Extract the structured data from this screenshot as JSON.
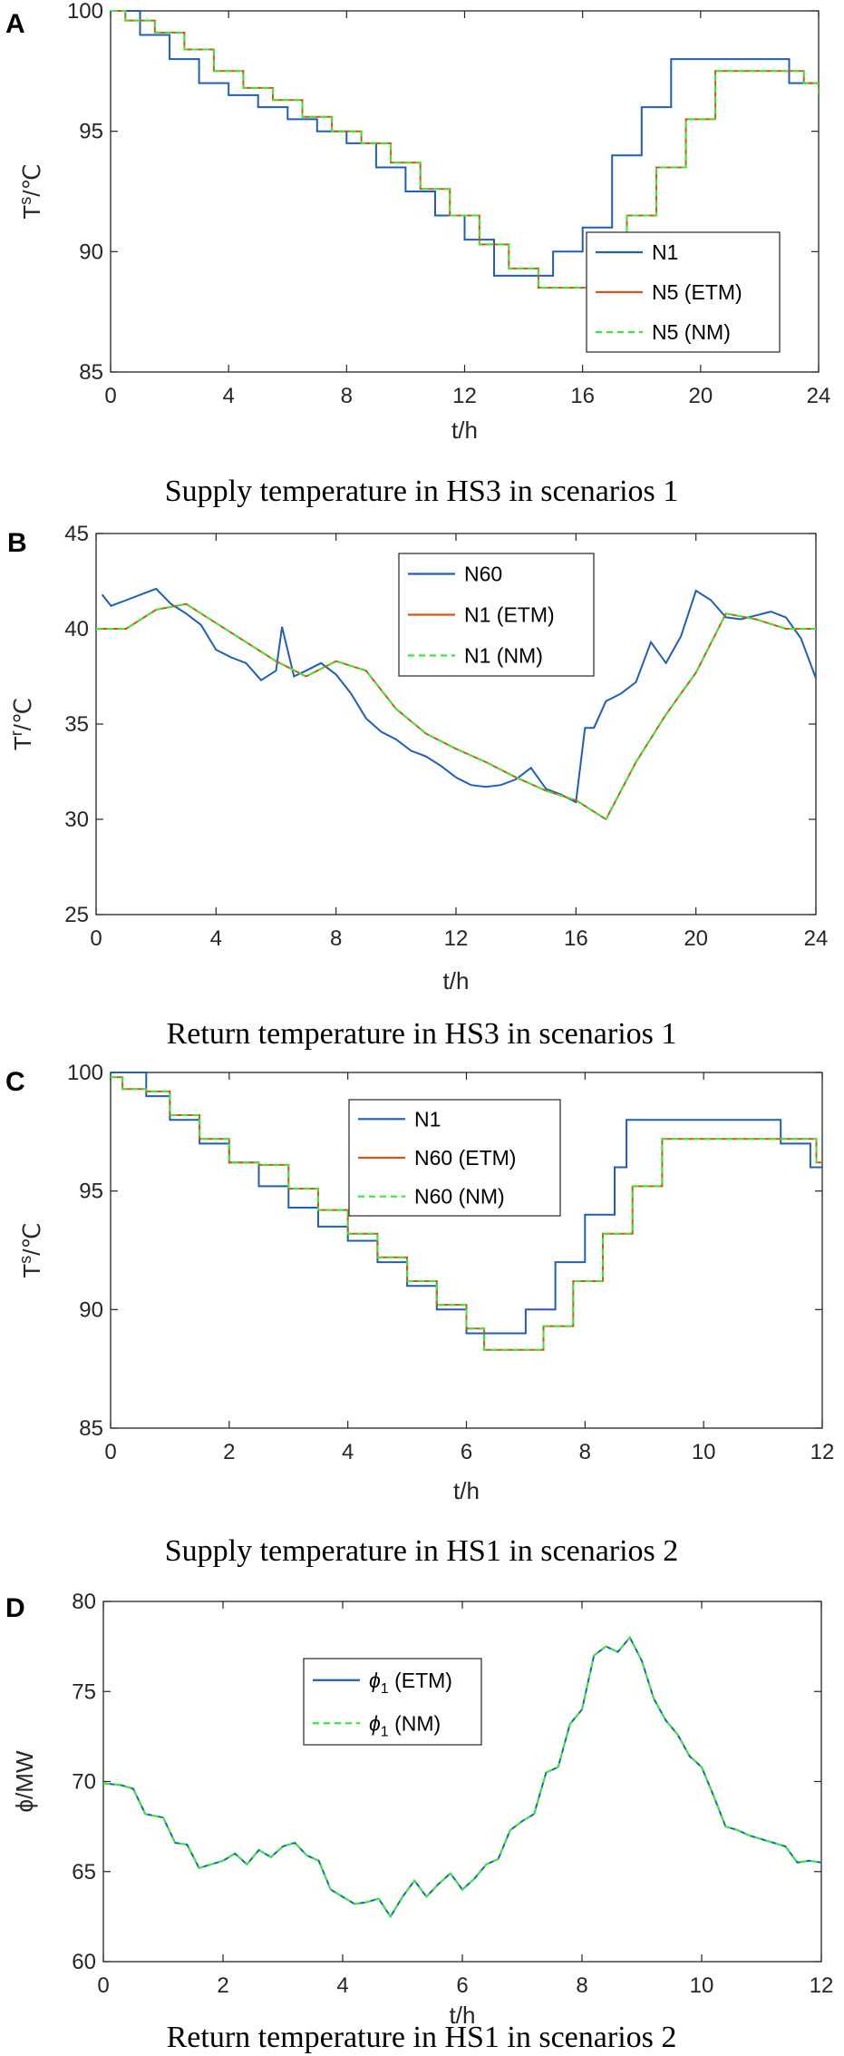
{
  "panels": [
    {
      "letter": "A",
      "caption": "Supply temperature in HS3 in scenarios 1",
      "chart_data": {
        "type": "line",
        "xlabel": "t/h",
        "ylabel": "Ts/℃",
        "ylabel_main": "T",
        "ylabel_sup": "s",
        "ylabel_unit": "/℃",
        "xlim": [
          0,
          24
        ],
        "ylim": [
          85,
          100
        ],
        "xticks": [
          0,
          4,
          8,
          12,
          16,
          20,
          24
        ],
        "yticks": [
          85,
          90,
          95,
          100
        ],
        "legend_position": "lower-right",
        "series": [
          {
            "name": "N1",
            "color": "#1f5fb4",
            "dash": "solid",
            "step": true,
            "x": [
              0,
              1,
              2,
              3,
              4,
              5,
              6,
              7,
              8,
              9,
              10,
              11,
              12,
              13,
              14,
              15,
              16,
              17,
              18,
              19,
              20,
              21,
              22,
              23,
              24
            ],
            "y": [
              100,
              99,
              98,
              97,
              96.5,
              96,
              95.5,
              95,
              94.5,
              93.5,
              92.5,
              91.5,
              90.5,
              89,
              89,
              90,
              91,
              94,
              96,
              98,
              98,
              98,
              98,
              97,
              96.5
            ]
          },
          {
            "name": "N5 (ETM)",
            "color": "#d95319",
            "dash": "solid",
            "step": true,
            "x": [
              0,
              0.5,
              1.5,
              2.5,
              3.5,
              4.5,
              5.5,
              6.5,
              7.5,
              8.5,
              9.5,
              10.5,
              11.5,
              12.5,
              13.5,
              14.5,
              15.5,
              16.5,
              17.5,
              18.5,
              19.5,
              20.5,
              21.5,
              22.5,
              23.5,
              24
            ],
            "y": [
              100,
              99.6,
              99.1,
              98.4,
              97.5,
              96.8,
              96.3,
              95.6,
              95,
              94.5,
              93.7,
              92.6,
              91.5,
              90.3,
              89.3,
              88.5,
              88.5,
              89.5,
              91.5,
              93.5,
              95.5,
              97.5,
              97.5,
              97.5,
              97,
              96.5
            ]
          },
          {
            "name": "N5 (NM)",
            "color": "#33ee33",
            "dash": "dashed",
            "step": true,
            "x": [
              0,
              0.5,
              1.5,
              2.5,
              3.5,
              4.5,
              5.5,
              6.5,
              7.5,
              8.5,
              9.5,
              10.5,
              11.5,
              12.5,
              13.5,
              14.5,
              15.5,
              16.5,
              17.5,
              18.5,
              19.5,
              20.5,
              21.5,
              22.5,
              23.5,
              24
            ],
            "y": [
              100,
              99.6,
              99.1,
              98.4,
              97.5,
              96.8,
              96.3,
              95.6,
              95,
              94.5,
              93.7,
              92.6,
              91.5,
              90.3,
              89.3,
              88.5,
              88.5,
              89.5,
              91.5,
              93.5,
              95.5,
              97.5,
              97.5,
              97.5,
              97,
              96.5
            ]
          }
        ]
      }
    },
    {
      "letter": "B",
      "caption": "Return temperature in HS3 in scenarios 1",
      "chart_data": {
        "type": "line",
        "xlabel": "t/h",
        "ylabel": "Tr/℃",
        "ylabel_main": "T",
        "ylabel_sup": "r",
        "ylabel_unit": "/℃",
        "xlim": [
          0,
          24
        ],
        "ylim": [
          25,
          45
        ],
        "xticks": [
          0,
          4,
          8,
          12,
          16,
          20,
          24
        ],
        "yticks": [
          25,
          30,
          35,
          40,
          45
        ],
        "legend_position": "top-center",
        "series": [
          {
            "name": "N60",
            "color": "#1f5fb4",
            "dash": "solid",
            "step": false,
            "x": [
              0.2,
              0.5,
              1,
              1.5,
              2,
              2.5,
              3,
              3.5,
              4,
              4.5,
              5,
              5.5,
              6,
              6.2,
              6.6,
              7,
              7.5,
              8,
              8.5,
              9,
              9.5,
              10,
              10.5,
              11,
              11.5,
              12,
              12.5,
              13,
              13.5,
              14,
              14.5,
              15,
              15.5,
              16,
              16.3,
              16.6,
              17,
              17.5,
              18,
              18.5,
              19,
              19.5,
              20,
              20.5,
              21,
              21.5,
              22,
              22.5,
              23,
              23.5,
              24
            ],
            "y": [
              41.8,
              41.2,
              41.5,
              41.8,
              42.1,
              41.3,
              40.8,
              40.2,
              38.9,
              38.5,
              38.2,
              37.3,
              37.8,
              40.1,
              37.5,
              37.8,
              38.2,
              37.6,
              36.6,
              35.3,
              34.6,
              34.2,
              33.6,
              33.3,
              32.8,
              32.2,
              31.8,
              31.7,
              31.8,
              32.1,
              32.7,
              31.6,
              31.3,
              30.9,
              34.8,
              34.8,
              36.2,
              36.6,
              37.2,
              39.3,
              38.2,
              39.6,
              42,
              41.5,
              40.6,
              40.5,
              40.7,
              40.9,
              40.6,
              39.5,
              37.4
            ]
          },
          {
            "name": "N1 (ETM)",
            "color": "#d95319",
            "dash": "solid",
            "step": false,
            "x": [
              0,
              1,
              2,
              3,
              4,
              5,
              6,
              7,
              8,
              9,
              10,
              11,
              12,
              13,
              14,
              15,
              16,
              17,
              18,
              19,
              20,
              21,
              22,
              23,
              24
            ],
            "y": [
              40,
              40,
              41,
              41.3,
              40.3,
              39.3,
              38.3,
              37.5,
              38.3,
              37.8,
              35.8,
              34.5,
              33.7,
              33,
              32.2,
              31.5,
              31,
              30,
              33,
              35.5,
              37.7,
              40.8,
              40.5,
              40,
              40
            ]
          },
          {
            "name": "N1 (NM)",
            "color": "#33ee33",
            "dash": "dashed",
            "step": false,
            "x": [
              0,
              1,
              2,
              3,
              4,
              5,
              6,
              7,
              8,
              9,
              10,
              11,
              12,
              13,
              14,
              15,
              16,
              17,
              18,
              19,
              20,
              21,
              22,
              23,
              24
            ],
            "y": [
              40,
              40,
              41,
              41.3,
              40.3,
              39.3,
              38.3,
              37.5,
              38.3,
              37.8,
              35.8,
              34.5,
              33.7,
              33,
              32.2,
              31.5,
              31,
              30,
              33,
              35.5,
              37.7,
              40.8,
              40.5,
              40,
              40
            ]
          }
        ]
      }
    },
    {
      "letter": "C",
      "caption": "Supply temperature in HS1 in scenarios 2",
      "chart_data": {
        "type": "line",
        "xlabel": "t/h",
        "ylabel": "Ts/℃",
        "ylabel_main": "T",
        "ylabel_sup": "s",
        "ylabel_unit": "/℃",
        "xlim": [
          0,
          12
        ],
        "ylim": [
          85,
          100
        ],
        "xticks": [
          0,
          2,
          4,
          6,
          8,
          10,
          12
        ],
        "yticks": [
          85,
          90,
          95,
          100
        ],
        "legend_position": "top-center",
        "series": [
          {
            "name": "N1",
            "color": "#1f5fb4",
            "dash": "solid",
            "step": true,
            "x": [
              0,
              0.6,
              1,
              1.5,
              2,
              2.5,
              3,
              3.5,
              4,
              4.5,
              5,
              5.5,
              6,
              6.5,
              7,
              7.5,
              8,
              8.5,
              8.7,
              10,
              11.3,
              11.8,
              12
            ],
            "y": [
              100,
              99,
              98,
              97,
              96.2,
              95.2,
              94.3,
              93.5,
              92.9,
              92,
              91,
              90,
              89,
              89,
              90,
              92,
              94,
              96,
              98,
              98,
              97,
              96,
              96
            ]
          },
          {
            "name": "N60 (ETM)",
            "color": "#d95319",
            "dash": "solid",
            "step": true,
            "x": [
              0,
              0.2,
              0.6,
              1,
              1.5,
              2,
              2.5,
              3,
              3.5,
              4,
              4.5,
              5,
              5.5,
              6,
              6.3,
              7,
              7.3,
              7.8,
              8.3,
              8.8,
              9.3,
              11.5,
              11.9,
              12
            ],
            "y": [
              99.8,
              99.3,
              99.2,
              98.2,
              97.2,
              96.2,
              96.1,
              95.1,
              94.2,
              93.2,
              92.2,
              91.2,
              90.2,
              89.2,
              88.3,
              88.3,
              89.3,
              91.2,
              93.2,
              95.2,
              97.2,
              97.2,
              96.2,
              96.2
            ]
          },
          {
            "name": "N60 (NM)",
            "color": "#33ee33",
            "dash": "dashed",
            "step": true,
            "x": [
              0,
              0.2,
              0.6,
              1,
              1.5,
              2,
              2.5,
              3,
              3.5,
              4,
              4.5,
              5,
              5.5,
              6,
              6.3,
              7,
              7.3,
              7.8,
              8.3,
              8.8,
              9.3,
              11.5,
              11.9,
              12
            ],
            "y": [
              99.8,
              99.3,
              99.2,
              98.2,
              97.2,
              96.2,
              96.1,
              95.1,
              94.2,
              93.2,
              92.2,
              91.2,
              90.2,
              89.2,
              88.3,
              88.3,
              89.3,
              91.2,
              93.2,
              95.2,
              97.2,
              97.2,
              96.2,
              96.2
            ]
          }
        ]
      }
    },
    {
      "letter": "D",
      "caption": "Return temperature in HS1 in scenarios 2",
      "chart_data": {
        "type": "line",
        "xlabel": "t/h",
        "ylabel": "ϕ/MW",
        "ylabel_main": "ϕ/MW",
        "ylabel_sup": "",
        "ylabel_unit": "",
        "xlim": [
          0,
          12
        ],
        "ylim": [
          60,
          80
        ],
        "xticks": [
          0,
          2,
          4,
          6,
          8,
          10,
          12
        ],
        "yticks": [
          60,
          65,
          70,
          75,
          80
        ],
        "legend_position": "top-left",
        "series": [
          {
            "name": "ϕ1 (ETM)",
            "name_main": "ϕ",
            "name_sub": "1",
            "name_rest": " (ETM)",
            "color": "#1f5fb4",
            "dash": "solid",
            "step": false,
            "x": [
              0,
              0.3,
              0.5,
              0.7,
              1,
              1.2,
              1.4,
              1.6,
              1.8,
              2,
              2.2,
              2.4,
              2.6,
              2.8,
              3,
              3.2,
              3.4,
              3.6,
              3.8,
              4,
              4.2,
              4.4,
              4.6,
              4.8,
              5,
              5.2,
              5.4,
              5.6,
              5.8,
              6,
              6.2,
              6.4,
              6.6,
              6.8,
              7,
              7.2,
              7.4,
              7.6,
              7.8,
              8,
              8.2,
              8.4,
              8.6,
              8.8,
              9,
              9.2,
              9.4,
              9.6,
              9.8,
              10,
              10.2,
              10.4,
              10.6,
              10.8,
              11,
              11.2,
              11.4,
              11.6,
              11.8,
              12
            ],
            "y": [
              69.9,
              69.8,
              69.6,
              68.2,
              68,
              66.6,
              66.5,
              65.2,
              65.4,
              65.6,
              66,
              65.4,
              66.2,
              65.8,
              66.4,
              66.6,
              65.9,
              65.6,
              64,
              63.6,
              63.2,
              63.3,
              63.5,
              62.5,
              63.6,
              64.5,
              63.6,
              64.3,
              64.9,
              64,
              64.6,
              65.4,
              65.7,
              67.3,
              67.8,
              68.2,
              70.5,
              70.8,
              73.2,
              74,
              77,
              77.5,
              77.2,
              78,
              76.7,
              74.6,
              73.4,
              72.6,
              71.4,
              70.8,
              69.2,
              67.5,
              67.3,
              67,
              66.8,
              66.6,
              66.4,
              65.5,
              65.6,
              65.5
            ]
          },
          {
            "name": "ϕ1 (NM)",
            "name_main": "ϕ",
            "name_sub": "1",
            "name_rest": " (NM)",
            "color": "#33ee33",
            "dash": "dashed",
            "step": false,
            "x": [
              0,
              0.3,
              0.5,
              0.7,
              1,
              1.2,
              1.4,
              1.6,
              1.8,
              2,
              2.2,
              2.4,
              2.6,
              2.8,
              3,
              3.2,
              3.4,
              3.6,
              3.8,
              4,
              4.2,
              4.4,
              4.6,
              4.8,
              5,
              5.2,
              5.4,
              5.6,
              5.8,
              6,
              6.2,
              6.4,
              6.6,
              6.8,
              7,
              7.2,
              7.4,
              7.6,
              7.8,
              8,
              8.2,
              8.4,
              8.6,
              8.8,
              9,
              9.2,
              9.4,
              9.6,
              9.8,
              10,
              10.2,
              10.4,
              10.6,
              10.8,
              11,
              11.2,
              11.4,
              11.6,
              11.8,
              12
            ],
            "y": [
              69.9,
              69.8,
              69.6,
              68.2,
              68,
              66.6,
              66.5,
              65.2,
              65.4,
              65.6,
              66,
              65.4,
              66.2,
              65.8,
              66.4,
              66.6,
              65.9,
              65.6,
              64,
              63.6,
              63.2,
              63.3,
              63.5,
              62.5,
              63.6,
              64.5,
              63.6,
              64.3,
              64.9,
              64,
              64.6,
              65.4,
              65.7,
              67.3,
              67.8,
              68.2,
              70.5,
              70.8,
              73.2,
              74,
              77,
              77.5,
              77.2,
              78,
              76.7,
              74.6,
              73.4,
              72.6,
              71.4,
              70.8,
              69.2,
              67.5,
              67.3,
              67,
              66.8,
              66.6,
              66.4,
              65.5,
              65.6,
              65.5
            ]
          }
        ]
      }
    }
  ]
}
